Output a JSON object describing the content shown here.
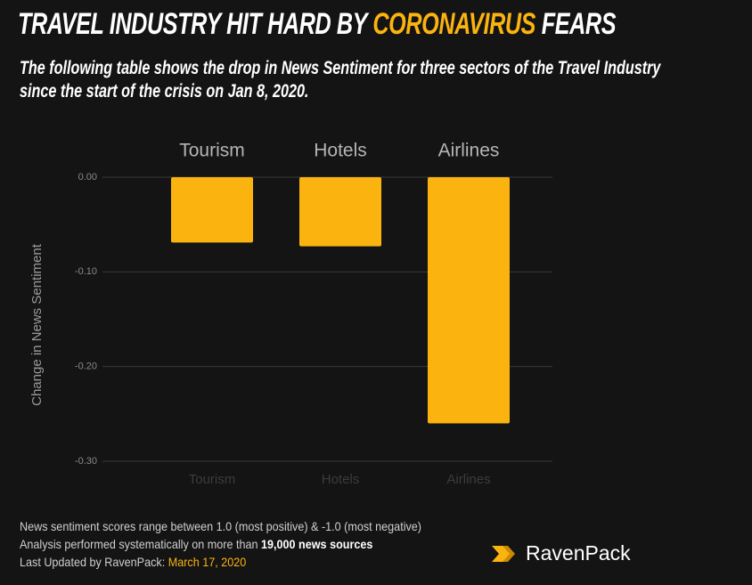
{
  "chart_data": {
    "type": "bar",
    "title": [
      "TRAVEL INDUSTRY HIT HARD BY",
      "CORONAVIRUS",
      "FEARS"
    ],
    "subtitle": "The following table shows the drop in News Sentiment for three sectors of the Travel Industry since the start of the crisis on Jan 8, 2020.",
    "y_label": "Change in News Sentiment",
    "categories": [
      "Tourism",
      "Hotels",
      "Airlines"
    ],
    "values": [
      -0.069,
      -0.073,
      -0.26
    ],
    "color": "#fbb40f",
    "ylim": [
      -0.3,
      0
    ],
    "yticks": [
      {
        "value": 0,
        "label": "0.00"
      },
      {
        "value": -0.1,
        "label": "-0.10"
      },
      {
        "value": -0.2,
        "label": "-0.20"
      },
      {
        "value": -0.3,
        "label": "-0.30"
      }
    ],
    "grid": true,
    "notes": [
      [
        "News sentiment scores range between 1.0 (most positive) & -1.0 (most negative)"
      ],
      [
        "Analysis performed systematically on more than",
        "19,000 news sources"
      ],
      [
        "Last Updated by RavenPack:",
        "March 17, 2020"
      ]
    ],
    "logo": "RavenPack"
  }
}
